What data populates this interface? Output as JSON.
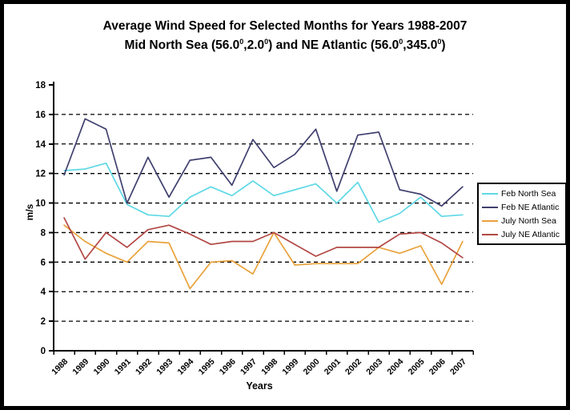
{
  "title": {
    "line1": "Average Wind Speed for Selected Months for Years 1988-2007",
    "line2_segments": [
      {
        "text": "Mid North Sea (56.0"
      },
      {
        "text": "0",
        "sup": true
      },
      {
        "text": ",2.0"
      },
      {
        "text": "0",
        "sup": true
      },
      {
        "text": ") and NE Atlantic (56.0"
      },
      {
        "text": "0",
        "sup": true
      },
      {
        "text": ",345.0"
      },
      {
        "text": "0",
        "sup": true
      },
      {
        "text": ")"
      }
    ]
  },
  "chart_data": {
    "type": "line",
    "title": "Average Wind Speed for Selected Months for Years 1988-2007 Mid North Sea (56.0⁰,2.0⁰) and NE Atlantic (56.0⁰,345.0⁰)",
    "xlabel": "Years",
    "ylabel": "m/s",
    "ylim": [
      0,
      18
    ],
    "yticks": [
      0,
      2,
      4,
      6,
      8,
      10,
      12,
      14,
      16,
      18
    ],
    "grid": "dashed horizontal lines at every 2 m/s from 2 to 16",
    "legend_position": "right",
    "categories": [
      "1988",
      "1989",
      "1990",
      "1991",
      "1992",
      "1993",
      "1994",
      "1995",
      "1996",
      "1997",
      "1998",
      "1999",
      "2000",
      "2001",
      "2002",
      "2003",
      "2004",
      "2005",
      "2006",
      "2007"
    ],
    "series": [
      {
        "name": "Feb North Sea",
        "color": "#5ed8e6",
        "values": [
          12.2,
          12.3,
          12.7,
          9.9,
          9.2,
          9.1,
          10.4,
          11.1,
          10.5,
          11.5,
          10.5,
          10.9,
          11.3,
          10.0,
          11.4,
          8.7,
          9.3,
          10.4,
          9.1,
          9.2
        ]
      },
      {
        "name": "Feb NE Atlantic",
        "color": "#40406f",
        "values": [
          11.9,
          15.7,
          15.0,
          10.0,
          13.1,
          10.4,
          12.9,
          13.1,
          11.2,
          14.3,
          12.4,
          13.3,
          15.0,
          10.8,
          14.6,
          14.8,
          10.9,
          10.6,
          9.8,
          11.1
        ]
      },
      {
        "name": "July North Sea",
        "color": "#e9a23c",
        "values": [
          8.5,
          7.4,
          6.6,
          6.0,
          7.4,
          7.3,
          4.2,
          6.0,
          6.1,
          5.2,
          8.0,
          5.8,
          5.9,
          5.9,
          5.9,
          7.0,
          6.6,
          7.1,
          4.5,
          7.4
        ]
      },
      {
        "name": "July NE Atlantic",
        "color": "#b24744",
        "values": [
          9.0,
          6.2,
          8.0,
          7.0,
          8.2,
          8.5,
          7.9,
          7.2,
          7.4,
          7.4,
          8.0,
          7.2,
          6.4,
          7.0,
          7.0,
          7.0,
          7.9,
          8.0,
          7.3,
          6.3
        ]
      }
    ]
  },
  "colors": {
    "axis": "#000000",
    "gridline": "#000000",
    "background": "#ffffff",
    "frame_border": "#000000"
  }
}
